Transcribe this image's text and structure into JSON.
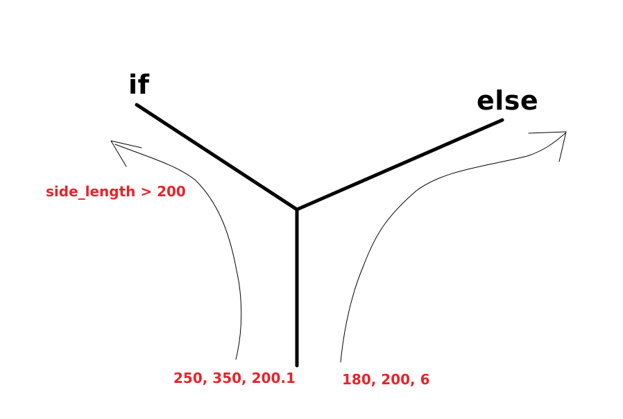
{
  "branches": {
    "if_label": "if",
    "else_label": "else"
  },
  "condition": {
    "text": "side_length > 200"
  },
  "inputs": {
    "if_values": "250, 350, 200.1",
    "else_values": "180, 200, 6"
  },
  "colors": {
    "branch_lines": "#000000",
    "arrows": "#000000",
    "annotation_text": "#e8232b",
    "label_text": "#000000",
    "background": "#ffffff"
  }
}
